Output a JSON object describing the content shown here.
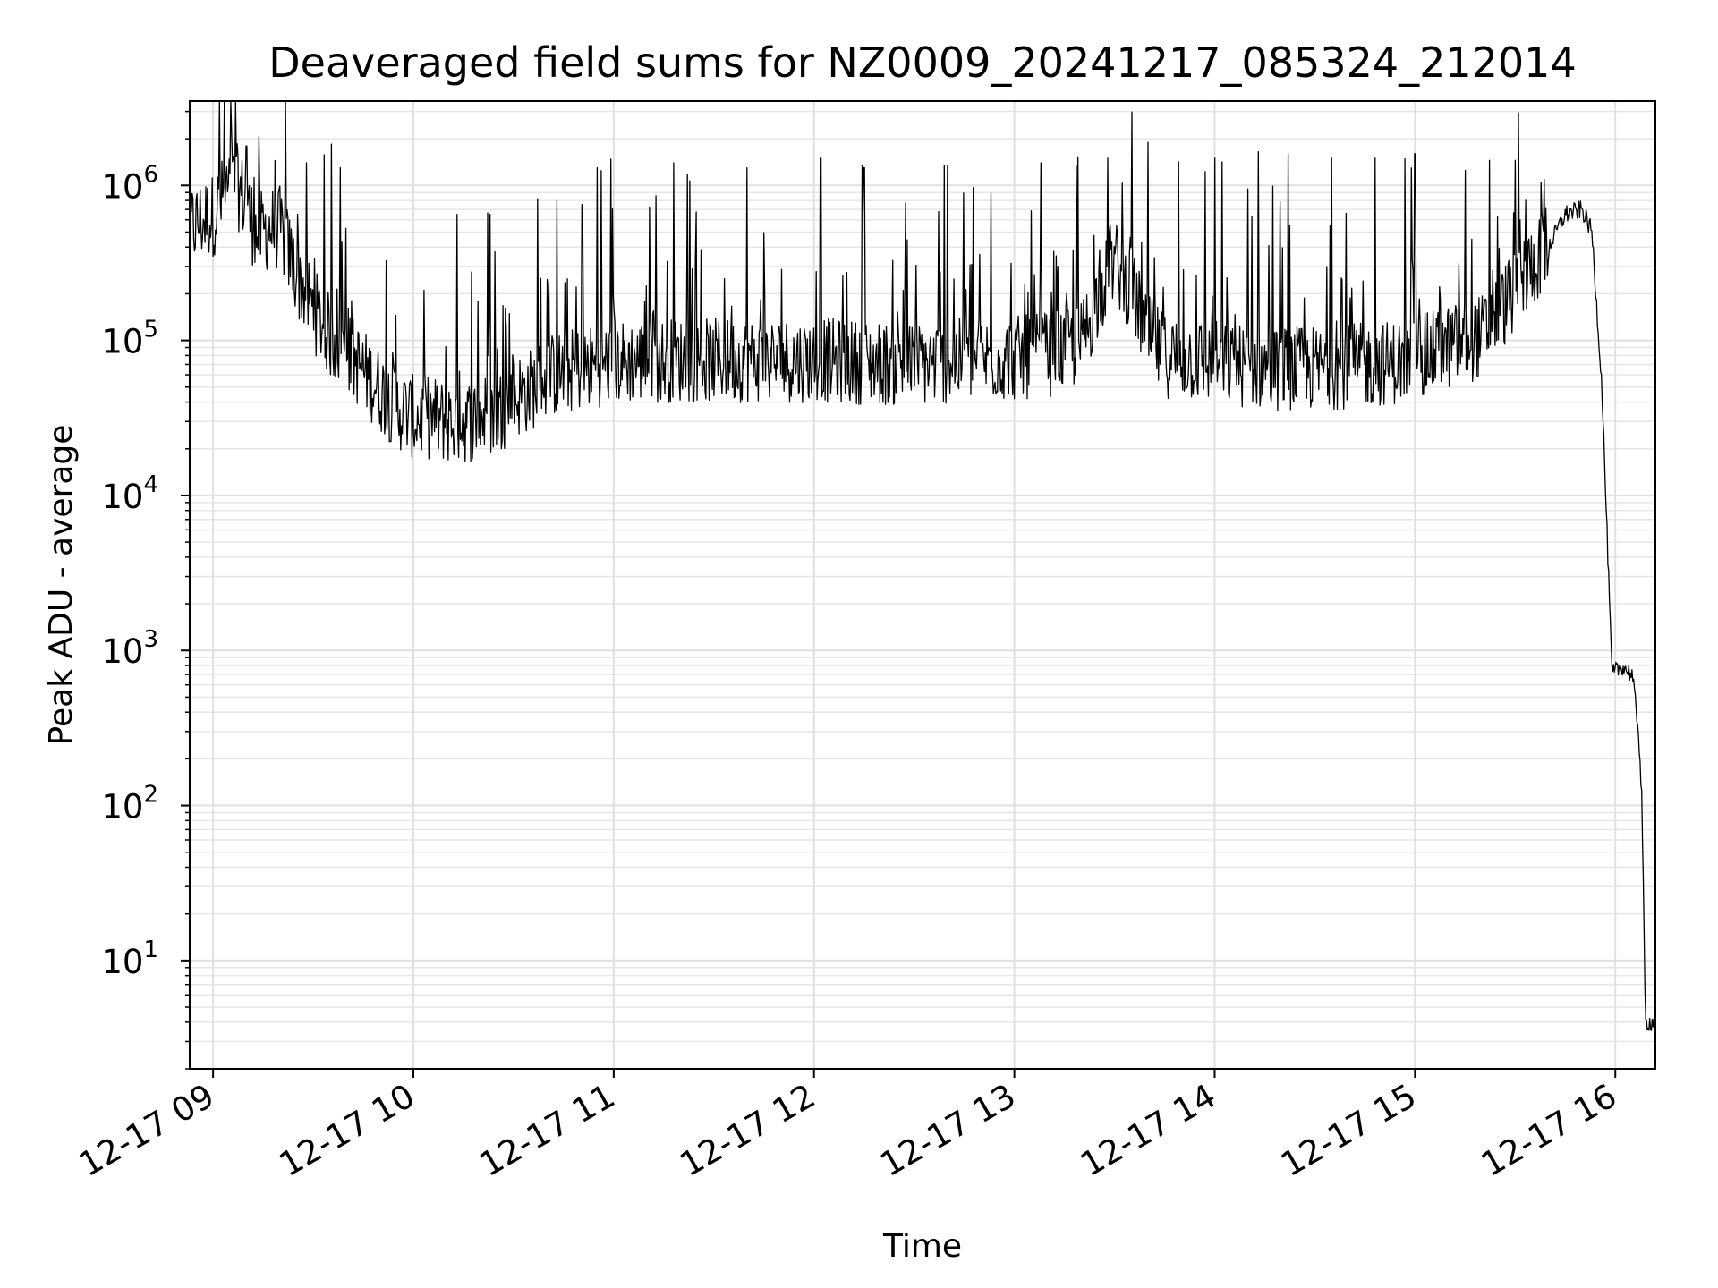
{
  "chart_data": {
    "type": "line",
    "title": "Deaveraged field sums for NZ0009_20241217_085324_212014",
    "xlabel": "Time",
    "ylabel": "Peak ADU - average",
    "yscale": "log",
    "grid": true,
    "xlim": [
      "12-17 08:53",
      "12-17 16:12"
    ],
    "ylim": [
      2,
      3500000
    ],
    "x_ticks": [
      {
        "label": "12-17 09",
        "value": "12-17 09:00"
      },
      {
        "label": "12-17 10",
        "value": "12-17 10:00"
      },
      {
        "label": "12-17 11",
        "value": "12-17 11:00"
      },
      {
        "label": "12-17 12",
        "value": "12-17 12:00"
      },
      {
        "label": "12-17 13",
        "value": "12-17 13:00"
      },
      {
        "label": "12-17 14",
        "value": "12-17 14:00"
      },
      {
        "label": "12-17 15",
        "value": "12-17 15:00"
      },
      {
        "label": "12-17 16",
        "value": "12-17 16:00"
      }
    ],
    "y_ticks": [
      {
        "base": "10",
        "exp": "1",
        "value": 10
      },
      {
        "base": "10",
        "exp": "2",
        "value": 100
      },
      {
        "base": "10",
        "exp": "3",
        "value": 1000
      },
      {
        "base": "10",
        "exp": "4",
        "value": 10000
      },
      {
        "base": "10",
        "exp": "5",
        "value": 100000
      },
      {
        "base": "10",
        "exp": "6",
        "value": 1000000
      }
    ],
    "series": [
      {
        "color": "#000000",
        "x": [
          "12-17 08:53",
          "12-17 08:56",
          "12-17 09:00",
          "12-17 09:04",
          "12-17 09:07",
          "12-17 09:10",
          "12-17 09:13",
          "12-17 09:17",
          "12-17 09:20",
          "12-17 09:25",
          "12-17 09:30",
          "12-17 09:35",
          "12-17 09:40",
          "12-17 09:45",
          "12-17 09:50",
          "12-17 09:55",
          "12-17 10:00",
          "12-17 10:05",
          "12-17 10:10",
          "12-17 10:15",
          "12-17 10:20",
          "12-17 10:25",
          "12-17 10:30",
          "12-17 10:35",
          "12-17 10:40",
          "12-17 10:50",
          "12-17 11:00",
          "12-17 11:15",
          "12-17 11:30",
          "12-17 11:45",
          "12-17 12:00",
          "12-17 12:15",
          "12-17 12:30",
          "12-17 12:45",
          "12-17 13:00",
          "12-17 13:10",
          "12-17 13:20",
          "12-17 13:25",
          "12-17 13:30",
          "12-17 13:35",
          "12-17 13:40",
          "12-17 13:45",
          "12-17 14:00",
          "12-17 14:15",
          "12-17 14:30",
          "12-17 14:45",
          "12-17 15:00",
          "12-17 15:10",
          "12-17 15:20",
          "12-17 15:30",
          "12-17 15:40",
          "12-17 15:45",
          "12-17 15:50",
          "12-17 15:53",
          "12-17 15:56",
          "12-17 15:59",
          "12-17 16:02",
          "12-17 16:05",
          "12-17 16:07",
          "12-17 16:08",
          "12-17 16:09",
          "12-17 16:12"
        ],
        "baseline": [
          500000,
          550000,
          600000,
          850000,
          950000,
          700000,
          450000,
          500000,
          500000,
          250000,
          150000,
          100000,
          80000,
          60000,
          45000,
          35000,
          30000,
          30000,
          28000,
          28000,
          30000,
          32000,
          40000,
          45000,
          55000,
          62000,
          68000,
          70000,
          70000,
          70000,
          70000,
          68000,
          65000,
          70000,
          72000,
          75000,
          90000,
          180000,
          300000,
          200000,
          100000,
          75000,
          68000,
          62000,
          62000,
          65000,
          70000,
          85000,
          100000,
          200000,
          400000,
          650000,
          700000,
          500000,
          50000,
          700,
          800,
          700,
          300,
          100,
          4,
          4
        ],
        "peaks": [
          {
            "x": "12-17 09:10",
            "y": 1800000
          },
          {
            "x": "12-17 09:28",
            "y": 1400000
          },
          {
            "x": "12-17 09:38",
            "y": 1300000
          },
          {
            "x": "12-17 10:13",
            "y": 650000
          },
          {
            "x": "12-17 10:23",
            "y": 650000
          },
          {
            "x": "12-17 10:43",
            "y": 800000
          },
          {
            "x": "12-17 10:55",
            "y": 1300000
          },
          {
            "x": "12-17 11:18",
            "y": 1400000
          },
          {
            "x": "12-17 11:40",
            "y": 1300000
          },
          {
            "x": "12-17 12:02",
            "y": 1500000
          },
          {
            "x": "12-17 12:15",
            "y": 1300000
          },
          {
            "x": "12-17 12:40",
            "y": 1350000
          },
          {
            "x": "12-17 13:08",
            "y": 1400000
          },
          {
            "x": "12-17 13:28",
            "y": 1500000
          },
          {
            "x": "12-17 13:40",
            "y": 1900000
          },
          {
            "x": "12-17 14:00",
            "y": 1500000
          },
          {
            "x": "12-17 14:13",
            "y": 1650000
          },
          {
            "x": "12-17 14:22",
            "y": 1600000
          },
          {
            "x": "12-17 14:35",
            "y": 1500000
          },
          {
            "x": "12-17 14:48",
            "y": 1500000
          },
          {
            "x": "12-17 15:00",
            "y": 1600000
          },
          {
            "x": "12-17 15:15",
            "y": 1250000
          },
          {
            "x": "12-17 15:30",
            "y": 1450000
          }
        ]
      }
    ]
  }
}
